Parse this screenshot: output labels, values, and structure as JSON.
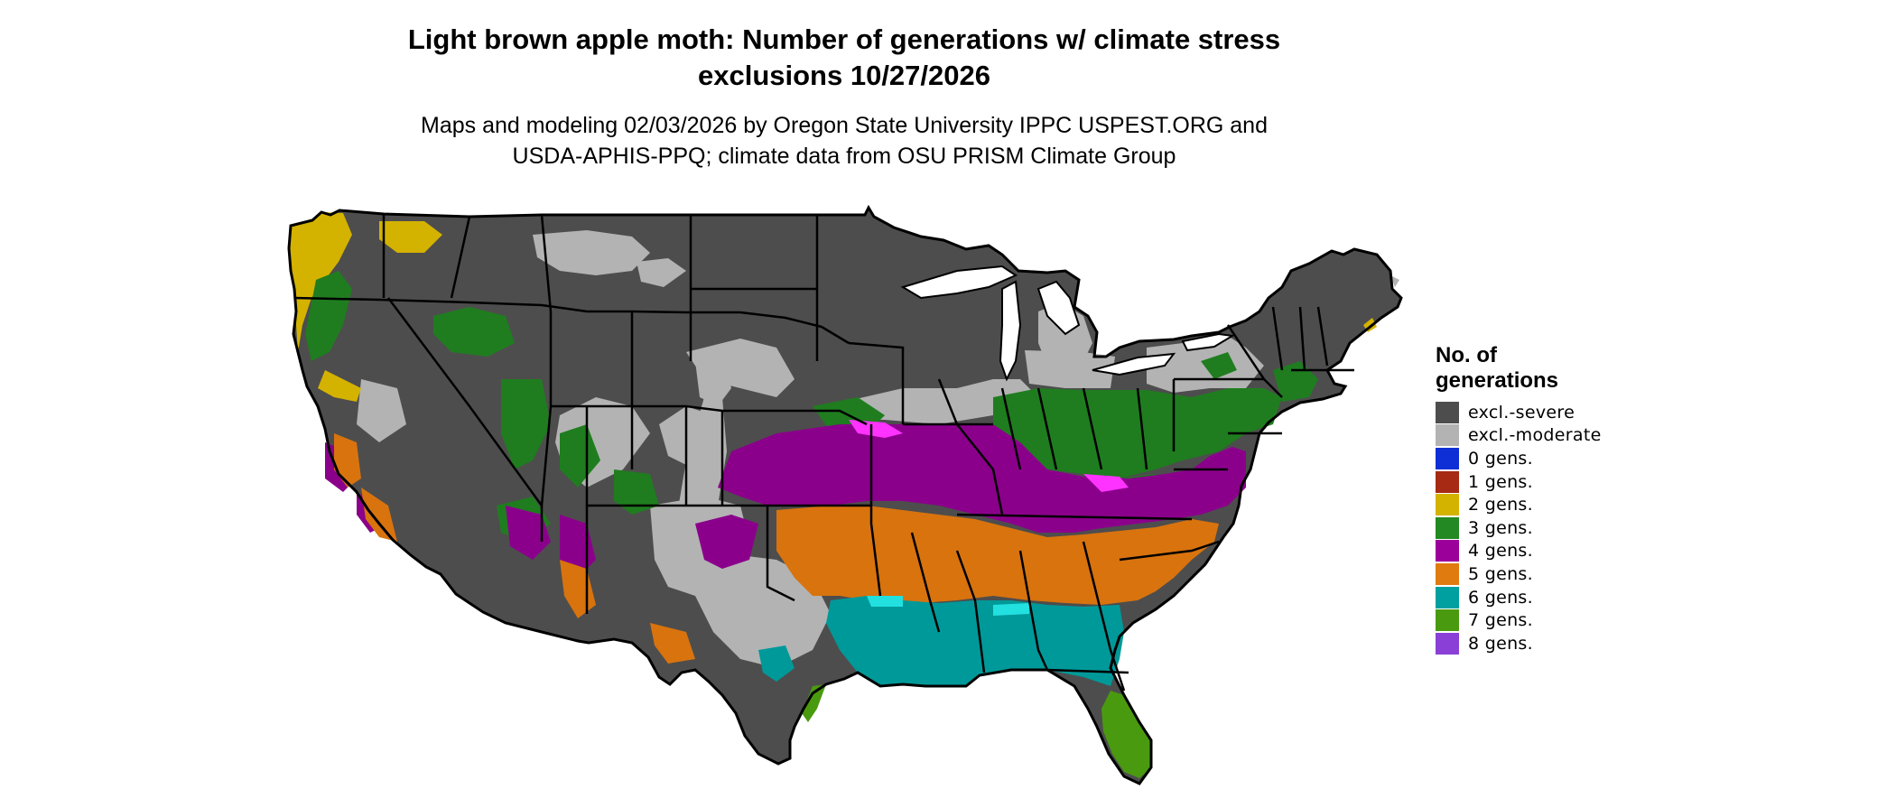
{
  "title_line1": "Light brown apple moth: Number of generations w/ climate stress",
  "title_line2": "exclusions 10/27/2026",
  "subtitle_line1": "Maps and modeling 02/03/2026 by Oregon State University IPPC USPEST.ORG and",
  "subtitle_line2": "USDA-APHIS-PPQ; climate data from OSU PRISM Climate Group",
  "legend": {
    "title_line1": "No. of",
    "title_line2": "generations",
    "items": [
      {
        "label": "excl.-severe",
        "color": "#4d4d4d"
      },
      {
        "label": "excl.-moderate",
        "color": "#b3b3b3"
      },
      {
        "label": "0 gens.",
        "color": "#0f2fd6"
      },
      {
        "label": "1 gens.",
        "color": "#a62a14"
      },
      {
        "label": "2 gens.",
        "color": "#d4b200"
      },
      {
        "label": "3 gens.",
        "color": "#238923"
      },
      {
        "label": "4 gens.",
        "color": "#9b009b"
      },
      {
        "label": "5 gens.",
        "color": "#e07b0f"
      },
      {
        "label": "6 gens.",
        "color": "#00a0a0"
      },
      {
        "label": "7 gens.",
        "color": "#4a9a10"
      },
      {
        "label": "8 gens.",
        "color": "#8a3fd6"
      }
    ]
  },
  "map_colors": {
    "severe": "#4d4d4d",
    "moderate": "#b3b3b3",
    "gen2": "#d4b200",
    "gen3": "#1f7d1f",
    "gen3dark": "#006400",
    "gen4": "#8b008b",
    "gen4pink": "#ff33ff",
    "gen5": "#d8730e",
    "gen6": "#009999",
    "gen6light": "#22e0e0",
    "gen7": "#4a9a10",
    "border": "#000000"
  }
}
